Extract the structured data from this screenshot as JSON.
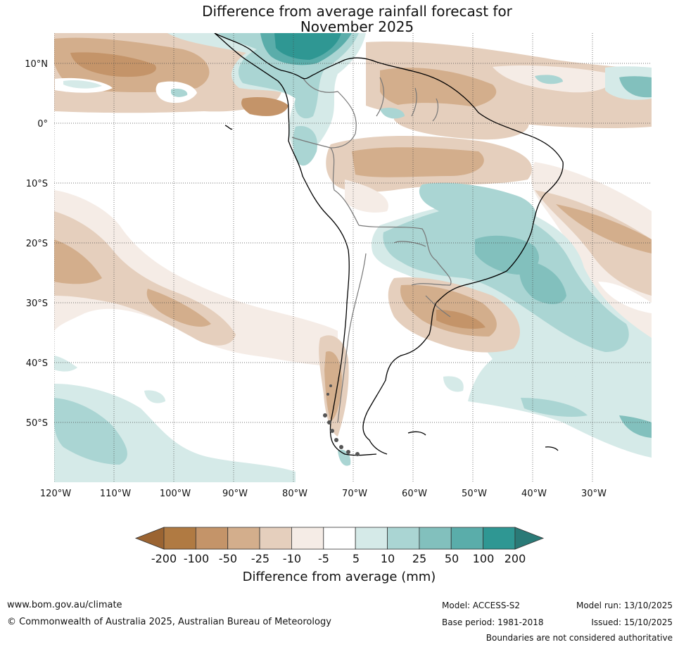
{
  "title": {
    "line1": "Difference from average rainfall forecast for",
    "line2": "November 2025"
  },
  "lat_labels": [
    "10°N",
    "0°",
    "10°S",
    "20°S",
    "30°S",
    "40°S",
    "50°S"
  ],
  "lon_labels": [
    "120°W",
    "110°W",
    "100°W",
    "90°W",
    "80°W",
    "70°W",
    "60°W",
    "50°W",
    "40°W",
    "30°W"
  ],
  "legend": {
    "title": "Difference from average (mm)",
    "ticks": [
      "-200",
      "-100",
      "-50",
      "-25",
      "-10",
      "-5",
      "5",
      "10",
      "25",
      "50",
      "100",
      "200"
    ],
    "colors": [
      "#9b6432",
      "#b07a42",
      "#c49469",
      "#d3ae8c",
      "#e5cfbd",
      "#f5ece6",
      "#ffffff",
      "#d5eae8",
      "#aad5d3",
      "#82c0bd",
      "#5aadaa",
      "#2f9793",
      "#2a7a77"
    ]
  },
  "footer": {
    "website": "www.bom.gov.au/climate",
    "copyright": "© Commonwealth of Australia 2025, Australian Bureau of Meteorology",
    "model": "Model: ACCESS-S2",
    "base_period": "Base period: 1981-2018",
    "model_run": "Model run: 13/10/2025",
    "issued": "Issued: 15/10/2025",
    "disclaimer": "Boundaries are not considered authoritative"
  }
}
